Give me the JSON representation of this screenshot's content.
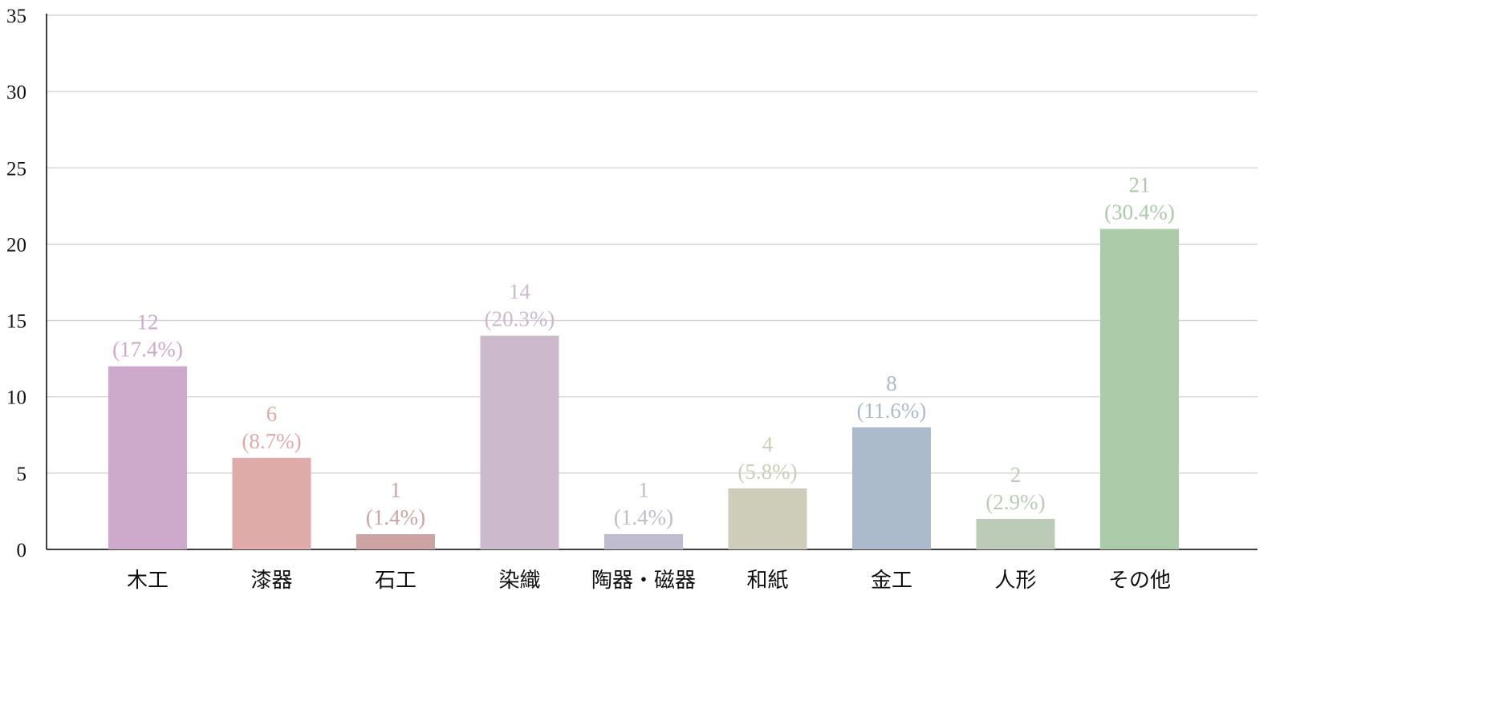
{
  "chart_data": {
    "type": "bar",
    "categories": [
      "木工",
      "漆器",
      "石工",
      "染織",
      "陶器・磁器",
      "和紙",
      "金工",
      "人形",
      "その他"
    ],
    "values": [
      12,
      6,
      1,
      14,
      1,
      4,
      8,
      2,
      21
    ],
    "percent_labels": [
      "(17.4%)",
      "(8.7%)",
      "(1.4%)",
      "(20.3%)",
      "(1.4%)",
      "(5.8%)",
      "(11.6%)",
      "(2.9%)",
      "(30.4%)"
    ],
    "colors": [
      "#cda9cb",
      "#dfaba8",
      "#cca4a3",
      "#cdb9cc",
      "#c0bccf",
      "#cdcdb9",
      "#abbbcb",
      "#bbcbb7",
      "#abcba9"
    ],
    "ylim": [
      0,
      35
    ],
    "yticks": [
      0,
      5,
      10,
      15,
      20,
      25,
      30,
      35
    ],
    "grid": true,
    "xlabel": "",
    "ylabel": ""
  }
}
